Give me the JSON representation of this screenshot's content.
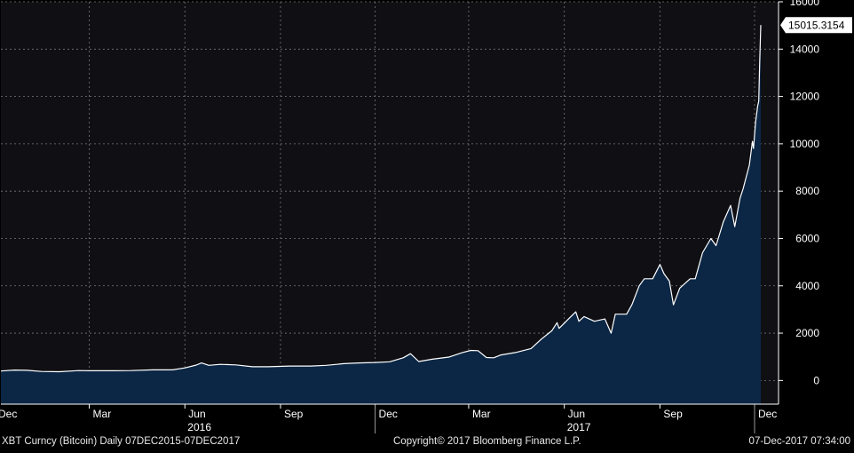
{
  "chart_data": {
    "type": "area",
    "title": "",
    "xlabel": "",
    "ylabel": "",
    "ylim": [
      -1000,
      16000
    ],
    "yticks": [
      "16000",
      "14000",
      "12000",
      "10000",
      "8000",
      "6000",
      "4000",
      "2000",
      "0"
    ],
    "ytick_values": [
      16000,
      14000,
      12000,
      10000,
      8000,
      6000,
      4000,
      2000,
      0
    ],
    "xtick_labels": [
      "Dec",
      "Mar",
      "Jun",
      "Sep",
      "Dec",
      "Mar",
      "Jun",
      "Sep",
      "Dec"
    ],
    "xtick_dates": [
      "2015-12-01",
      "2016-03-01",
      "2016-06-01",
      "2016-09-01",
      "2016-12-01",
      "2017-03-01",
      "2017-06-01",
      "2017-09-01",
      "2017-12-01"
    ],
    "year_labels": [
      "2016",
      "2017"
    ],
    "year_dates": [
      "2016-06-15",
      "2017-06-15"
    ],
    "xlim": [
      "2015-12-07",
      "2017-12-07"
    ],
    "grid": true,
    "last_value_label": "15015.3154",
    "series": [
      {
        "line_color": "#ffffff",
        "fill_color": "#0c2745",
        "points": [
          [
            "2015-12-07",
            400
          ],
          [
            "2015-12-20",
            440
          ],
          [
            "2016-01-01",
            430
          ],
          [
            "2016-01-15",
            380
          ],
          [
            "2016-02-01",
            370
          ],
          [
            "2016-02-20",
            420
          ],
          [
            "2016-03-01",
            410
          ],
          [
            "2016-03-20",
            410
          ],
          [
            "2016-04-10",
            420
          ],
          [
            "2016-05-01",
            450
          ],
          [
            "2016-05-20",
            450
          ],
          [
            "2016-06-01",
            530
          ],
          [
            "2016-06-12",
            650
          ],
          [
            "2016-06-17",
            740
          ],
          [
            "2016-06-24",
            640
          ],
          [
            "2016-07-05",
            680
          ],
          [
            "2016-07-20",
            660
          ],
          [
            "2016-08-05",
            580
          ],
          [
            "2016-08-20",
            580
          ],
          [
            "2016-09-10",
            610
          ],
          [
            "2016-09-30",
            610
          ],
          [
            "2016-10-15",
            640
          ],
          [
            "2016-11-01",
            710
          ],
          [
            "2016-11-15",
            740
          ],
          [
            "2016-12-01",
            760
          ],
          [
            "2016-12-15",
            790
          ],
          [
            "2016-12-28",
            960
          ],
          [
            "2017-01-04",
            1130
          ],
          [
            "2017-01-12",
            800
          ],
          [
            "2017-01-25",
            900
          ],
          [
            "2017-02-10",
            990
          ],
          [
            "2017-02-23",
            1180
          ],
          [
            "2017-03-03",
            1270
          ],
          [
            "2017-03-10",
            1260
          ],
          [
            "2017-03-18",
            970
          ],
          [
            "2017-03-25",
            960
          ],
          [
            "2017-04-01",
            1080
          ],
          [
            "2017-04-15",
            1180
          ],
          [
            "2017-04-30",
            1350
          ],
          [
            "2017-05-10",
            1750
          ],
          [
            "2017-05-20",
            2100
          ],
          [
            "2017-05-25",
            2440
          ],
          [
            "2017-05-27",
            2200
          ],
          [
            "2017-06-05",
            2600
          ],
          [
            "2017-06-12",
            2900
          ],
          [
            "2017-06-15",
            2500
          ],
          [
            "2017-06-20",
            2700
          ],
          [
            "2017-06-30",
            2500
          ],
          [
            "2017-07-10",
            2600
          ],
          [
            "2017-07-16",
            2000
          ],
          [
            "2017-07-20",
            2800
          ],
          [
            "2017-07-31",
            2800
          ],
          [
            "2017-08-05",
            3200
          ],
          [
            "2017-08-12",
            4000
          ],
          [
            "2017-08-17",
            4300
          ],
          [
            "2017-08-25",
            4300
          ],
          [
            "2017-09-01",
            4900
          ],
          [
            "2017-09-05",
            4500
          ],
          [
            "2017-09-10",
            4200
          ],
          [
            "2017-09-14",
            3200
          ],
          [
            "2017-09-20",
            3900
          ],
          [
            "2017-09-30",
            4300
          ],
          [
            "2017-10-05",
            4300
          ],
          [
            "2017-10-12",
            5400
          ],
          [
            "2017-10-20",
            6000
          ],
          [
            "2017-10-25",
            5700
          ],
          [
            "2017-11-01",
            6700
          ],
          [
            "2017-11-08",
            7400
          ],
          [
            "2017-11-12",
            6500
          ],
          [
            "2017-11-17",
            7700
          ],
          [
            "2017-11-20",
            8100
          ],
          [
            "2017-11-26",
            9100
          ],
          [
            "2017-11-29",
            10100
          ],
          [
            "2017-11-30",
            9800
          ],
          [
            "2017-12-02",
            10900
          ],
          [
            "2017-12-04",
            11600
          ],
          [
            "2017-12-05",
            11800
          ],
          [
            "2017-12-06",
            13500
          ],
          [
            "2017-12-07",
            15015.3154
          ]
        ]
      }
    ]
  },
  "footer": {
    "left": "XBT Curncy (Bitcoin)  Daily 07DEC2015-07DEC2017",
    "center": "Copyright© 2017 Bloomberg Finance L.P.",
    "right": "07-Dec-2017 07:34:00"
  },
  "colors": {
    "background": "#000000",
    "plot_background": "#0f0f14",
    "grid": "#7a7a7a",
    "label_box": "#ffffff",
    "label_text": "#000000"
  }
}
